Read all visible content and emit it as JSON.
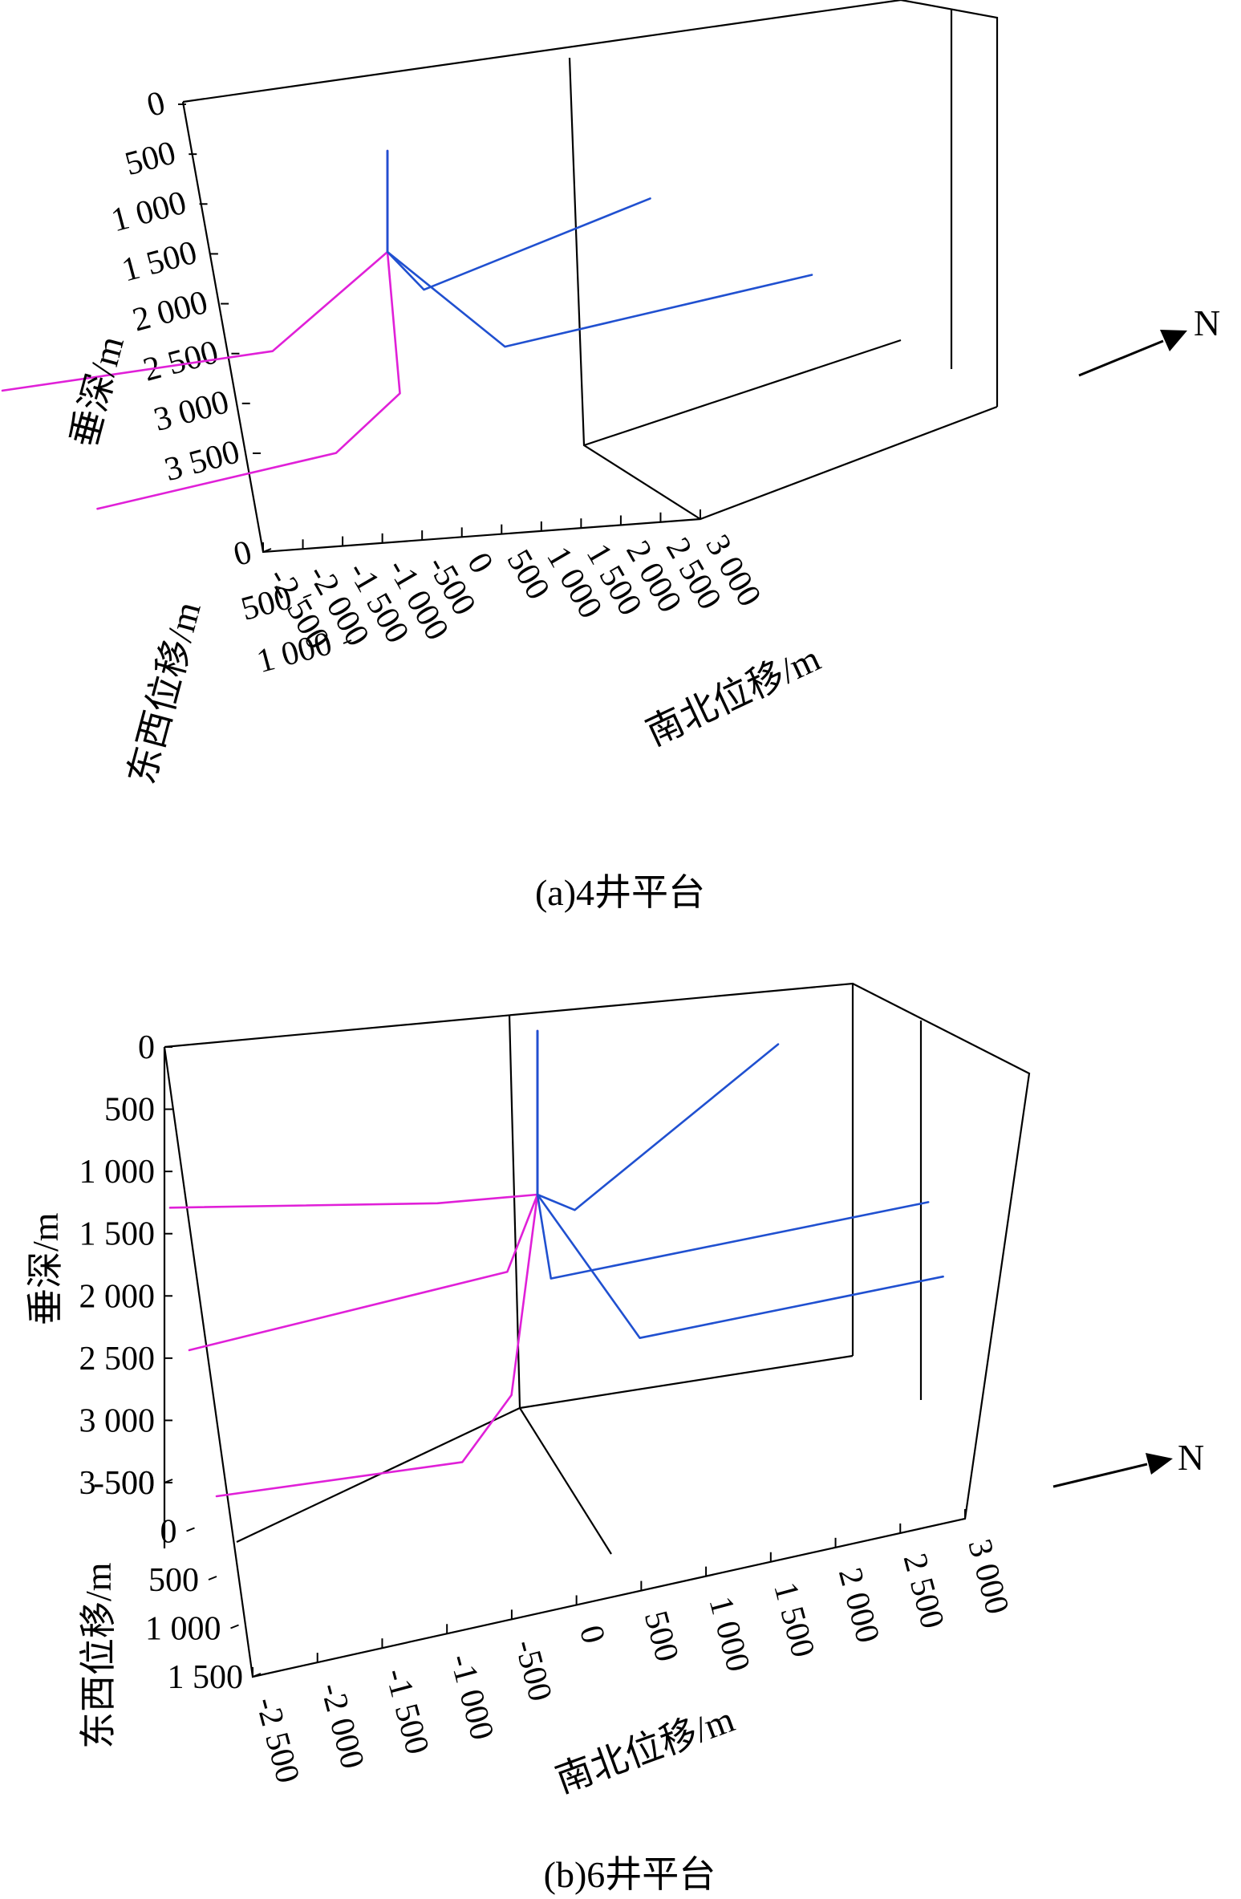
{
  "chart_data": [
    {
      "type": "line",
      "subtype": "3d-well-trajectory",
      "caption": "(a)4井平台",
      "axes": {
        "z": {
          "label": "垂深/m",
          "ticks": [
            "0",
            "500",
            "1 000",
            "1 500",
            "2 000",
            "2 500",
            "3 000",
            "3 500"
          ],
          "range": [
            0,
            3500
          ]
        },
        "y": {
          "label": "东西位移/m",
          "ticks": [
            "0",
            "500",
            "1 000"
          ],
          "range": [
            0,
            1000
          ]
        },
        "x": {
          "label": "南北位移/m",
          "ticks": [
            "-2 500",
            "-2 000",
            "-1 500",
            "-1 000",
            "-500",
            "0",
            "500",
            "1 000",
            "1 500",
            "2 000",
            "2 500",
            "3 000"
          ],
          "range": [
            -2500,
            3000
          ]
        }
      },
      "north_label": "N",
      "series": [
        {
          "color": "#e020d8",
          "points": [
            {
              "x": 0,
              "y": 500,
              "z": 0
            },
            {
              "x": 0,
              "y": 500,
              "z": 1000
            },
            {
              "x": -700,
              "y": 280,
              "z": 1900
            },
            {
              "x": -2500,
              "y": 0,
              "z": 1900
            }
          ]
        },
        {
          "color": "#e020d8",
          "points": [
            {
              "x": 0,
              "y": 500,
              "z": 0
            },
            {
              "x": 0,
              "y": 500,
              "z": 1000
            },
            {
              "x": -200,
              "y": 950,
              "z": 2050
            },
            {
              "x": -700,
              "y": 1000,
              "z": 2450
            },
            {
              "x": -2450,
              "y": 1000,
              "z": 2450
            }
          ]
        },
        {
          "color": "#2050d0",
          "points": [
            {
              "x": 0,
              "y": 500,
              "z": 0
            },
            {
              "x": 0,
              "y": 500,
              "z": 1000
            },
            {
              "x": 300,
              "y": 450,
              "z": 1500
            },
            {
              "x": 2250,
              "y": 0,
              "z": 1500
            }
          ]
        },
        {
          "color": "#2050d0",
          "points": [
            {
              "x": 0,
              "y": 500,
              "z": 0
            },
            {
              "x": 0,
              "y": 500,
              "z": 1000
            },
            {
              "x": 700,
              "y": 750,
              "z": 2000
            },
            {
              "x": 2950,
              "y": 750,
              "z": 2000
            }
          ]
        }
      ]
    },
    {
      "type": "line",
      "subtype": "3d-well-trajectory",
      "caption": "(b)6井平台",
      "axes": {
        "z": {
          "label": "垂深/m",
          "ticks": [
            "0",
            "500",
            "1 000",
            "1 500",
            "2 000",
            "2 500",
            "3 000",
            "3 500"
          ],
          "range": [
            0,
            3500
          ]
        },
        "y": {
          "label": "东西位移/m",
          "ticks": [
            "-500",
            "0",
            "500",
            "1 000",
            "1 500"
          ],
          "range": [
            -500,
            1500
          ]
        },
        "x": {
          "label": "南北位移/m",
          "ticks": [
            "-2 500",
            "-2 000",
            "-1 500",
            "-1 000",
            "-500",
            "0",
            "500",
            "1 000",
            "1 500",
            "2 000",
            "2 500",
            "3 000"
          ],
          "range": [
            -2500,
            3000
          ]
        }
      },
      "north_label": "N",
      "series": [
        {
          "color": "#e020d8",
          "points": [
            {
              "x": 0,
              "y": 500,
              "z": 0
            },
            {
              "x": 0,
              "y": 500,
              "z": 1700
            },
            {
              "x": -600,
              "y": -100,
              "z": 2550
            },
            {
              "x": -2500,
              "y": -450,
              "z": 2600
            }
          ]
        },
        {
          "color": "#e020d8",
          "points": [
            {
              "x": 0,
              "y": 500,
              "z": 0
            },
            {
              "x": 0,
              "y": 500,
              "z": 1700
            },
            {
              "x": -200,
              "y": 400,
              "z": 2600
            },
            {
              "x": -2500,
              "y": 150,
              "z": 3150
            }
          ]
        },
        {
          "color": "#e020d8",
          "points": [
            {
              "x": 0,
              "y": 500,
              "z": 0
            },
            {
              "x": 0,
              "y": 500,
              "z": 1700
            },
            {
              "x": -300,
              "y": 950,
              "z": 3000
            },
            {
              "x": -700,
              "y": 1100,
              "z": 3350
            },
            {
              "x": -2500,
              "y": 1000,
              "z": 3350
            }
          ]
        },
        {
          "color": "#2050d0",
          "points": [
            {
              "x": 0,
              "y": 500,
              "z": 0
            },
            {
              "x": 0,
              "y": 500,
              "z": 1700
            },
            {
              "x": 300,
              "y": 400,
              "z": 2100
            },
            {
              "x": 2000,
              "y": -400,
              "z": 2100
            }
          ]
        },
        {
          "color": "#2050d0",
          "points": [
            {
              "x": 0,
              "y": 500,
              "z": 0
            },
            {
              "x": 0,
              "y": 500,
              "z": 1700
            },
            {
              "x": 100,
              "y": 500,
              "z": 2600
            },
            {
              "x": 700,
              "y": 500,
              "z": 2600
            },
            {
              "x": 2900,
              "y": 500,
              "z": 2600
            }
          ]
        },
        {
          "color": "#2050d0",
          "points": [
            {
              "x": 0,
              "y": 500,
              "z": 0
            },
            {
              "x": 0,
              "y": 500,
              "z": 1700
            },
            {
              "x": 700,
              "y": 750,
              "z": 3000
            },
            {
              "x": 2950,
              "y": 750,
              "z": 3000
            }
          ]
        }
      ]
    }
  ]
}
